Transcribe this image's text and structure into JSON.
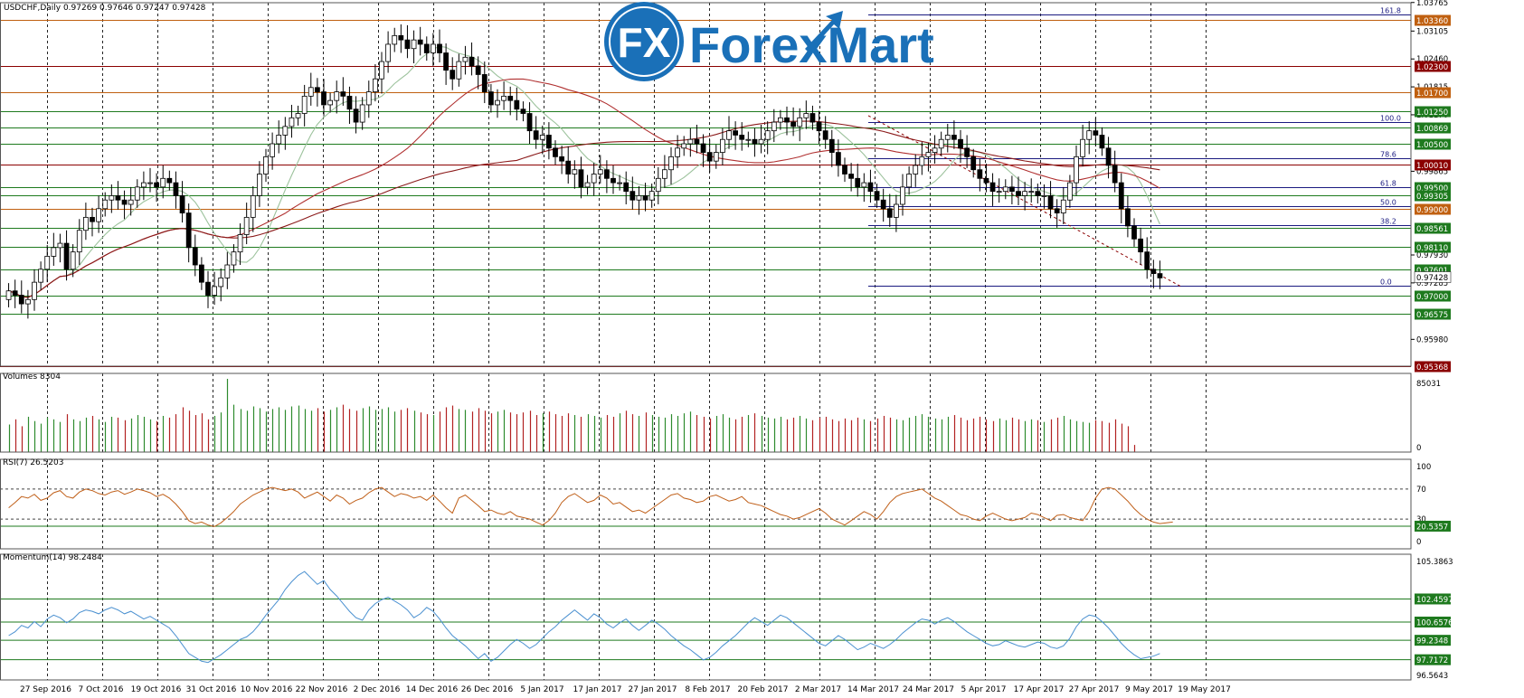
{
  "app": {
    "title": "USDCHF,Daily  0.97269 0.97646 0.97247 0.97428"
  },
  "brand": {
    "name": "ForexMart",
    "mark": "FX"
  },
  "colors": {
    "background": "#ffffff",
    "grid": "#000000",
    "candle_up": "#ffffff",
    "candle_down": "#000000",
    "candle_wick": "#000000",
    "ma_fast": "#9cc29c",
    "ma_mid": "#b03030",
    "ma_slow": "#8b1a1a",
    "level_green": "#1e7a1e",
    "level_red": "#8b0000",
    "level_orange": "#c06010",
    "fib": "#1a1a80",
    "volume_up": "#2e8b2e",
    "volume_down": "#b22222",
    "rsi": "#c0601a",
    "momentum": "#4a90d0",
    "logo_blue": "#1a70b8"
  },
  "chart_data": [
    {
      "type": "candlestick",
      "title": "USDCHF,Daily  0.97269 0.97646 0.97247 0.97428",
      "ylim": [
        0.9536,
        1.0376
      ],
      "x_tick_labels": [
        "27 Sep 2016",
        "7 Oct 2016",
        "19 Oct 2016",
        "31 Oct 2016",
        "10 Nov 2016",
        "22 Nov 2016",
        "2 Dec 2016",
        "14 Dec 2016",
        "26 Dec 2016",
        "5 Jan 2017",
        "17 Jan 2017",
        "27 Jan 2017",
        "8 Feb 2017",
        "20 Feb 2017",
        "2 Mar 2017",
        "14 Mar 2017",
        "24 Mar 2017",
        "5 Apr 2017",
        "17 Apr 2017",
        "27 Apr 2017",
        "9 May 2017",
        "19 May 2017"
      ],
      "y_tick_labels": [
        "1.03765",
        "1.03105",
        "1.02460",
        "1.01815",
        "1.01170",
        "0.99865",
        "0.97930",
        "0.97285",
        "0.95980"
      ],
      "close_series": [
        0.971,
        0.97,
        0.968,
        0.969,
        0.973,
        0.976,
        0.979,
        0.981,
        0.982,
        0.976,
        0.98,
        0.985,
        0.988,
        0.987,
        0.99,
        0.992,
        0.993,
        0.992,
        0.991,
        0.992,
        0.995,
        0.996,
        0.996,
        0.995,
        0.997,
        0.996,
        0.993,
        0.989,
        0.981,
        0.977,
        0.973,
        0.97,
        0.972,
        0.974,
        0.977,
        0.98,
        0.984,
        0.988,
        0.993,
        0.998,
        1.002,
        1.005,
        1.007,
        1.009,
        1.011,
        1.012,
        1.016,
        1.018,
        1.017,
        1.014,
        1.015,
        1.017,
        1.016,
        1.013,
        1.01,
        1.014,
        1.017,
        1.02,
        1.024,
        1.028,
        1.03,
        1.029,
        1.027,
        1.029,
        1.028,
        1.026,
        1.028,
        1.026,
        1.022,
        1.02,
        1.024,
        1.025,
        1.023,
        1.021,
        1.017,
        1.014,
        1.015,
        1.016,
        1.015,
        1.013,
        1.012,
        1.008,
        1.006,
        1.007,
        1.004,
        1.002,
        1.001,
        0.998,
        0.999,
        0.995,
        0.996,
        0.998,
        0.999,
        0.997,
        0.996,
        0.996,
        0.994,
        0.992,
        0.993,
        0.992,
        0.994,
        0.997,
        0.999,
        1.002,
        1.004,
        1.005,
        1.006,
        1.005,
        1.003,
        1.001,
        1.003,
        1.006,
        1.008,
        1.007,
        1.006,
        1.006,
        1.005,
        1.006,
        1.008,
        1.01,
        1.011,
        1.01,
        1.009,
        1.011,
        1.012,
        1.01,
        1.008,
        1.006,
        1.003,
        1.0,
        0.998,
        0.997,
        0.995,
        0.996,
        0.994,
        0.992,
        0.99,
        0.988,
        0.991,
        0.995,
        0.998,
        1.0,
        1.002,
        1.003,
        1.004,
        1.006,
        1.007,
        1.006,
        1.004,
        1.002,
        0.999,
        0.997,
        0.996,
        0.994,
        0.994,
        0.995,
        0.994,
        0.993,
        0.994,
        0.994,
        0.993,
        0.993,
        0.99,
        0.989,
        0.992,
        0.996,
        1.002,
        1.006,
        1.008,
        1.007,
        1.004,
        1.0,
        0.996,
        0.99,
        0.986,
        0.983,
        0.98,
        0.976,
        0.975,
        0.974
      ],
      "levels": [
        {
          "label": "1.03360",
          "value": 1.0336,
          "style": "orange"
        },
        {
          "label": "1.02300",
          "value": 1.023,
          "style": "red"
        },
        {
          "label": "1.01700",
          "value": 1.017,
          "style": "orange"
        },
        {
          "label": "1.01250",
          "value": 1.0125,
          "style": "green"
        },
        {
          "label": "1.00869",
          "value": 1.00869,
          "style": "green"
        },
        {
          "label": "1.00500",
          "value": 1.005,
          "style": "green"
        },
        {
          "label": "1.00010",
          "value": 1.0001,
          "style": "red"
        },
        {
          "label": "0.99500",
          "value": 0.995,
          "style": "green"
        },
        {
          "label": "0.99305",
          "value": 0.99305,
          "style": "green"
        },
        {
          "label": "0.99000",
          "value": 0.99,
          "style": "orange"
        },
        {
          "label": "0.98561",
          "value": 0.98561,
          "style": "green"
        },
        {
          "label": "0.98110",
          "value": 0.9811,
          "style": "green"
        },
        {
          "label": "0.97601",
          "value": 0.97601,
          "style": "green"
        },
        {
          "label": "0.97428",
          "value": 0.97428,
          "style": "white"
        },
        {
          "label": "0.97000",
          "value": 0.97,
          "style": "green"
        },
        {
          "label": "0.96575",
          "value": 0.96575,
          "style": "green"
        },
        {
          "label": "0.95368",
          "value": 0.95368,
          "style": "red"
        }
      ],
      "fib_levels": [
        {
          "label": "161.8",
          "value": 1.0348
        },
        {
          "label": "100.0",
          "value": 1.01
        },
        {
          "label": "78.6",
          "value": 1.0016
        },
        {
          "label": "61.8",
          "value": 0.995
        },
        {
          "label": "50.0",
          "value": 0.9905
        },
        {
          "label": "38.2",
          "value": 0.9862
        },
        {
          "label": "0.0",
          "value": 0.9721
        }
      ]
    },
    {
      "type": "bar",
      "title": "Volumes 8304",
      "ylim": [
        0,
        85031
      ],
      "y_tick_labels": [
        "85031",
        "0"
      ],
      "values": [
        32000,
        38000,
        30000,
        41000,
        36000,
        33000,
        40000,
        38000,
        35000,
        44000,
        38000,
        36000,
        40000,
        42000,
        38000,
        35000,
        41000,
        40000,
        37000,
        39000,
        43000,
        41000,
        38000,
        36000,
        42000,
        40000,
        44000,
        52000,
        48000,
        43000,
        45000,
        38000,
        42000,
        46000,
        85031,
        55000,
        50000,
        48000,
        53000,
        51000,
        47000,
        50000,
        52000,
        49000,
        53000,
        54000,
        50000,
        48000,
        51000,
        47000,
        49000,
        52000,
        55000,
        50000,
        48000,
        51000,
        53000,
        49000,
        50000,
        52000,
        47000,
        49000,
        51000,
        48000,
        46000,
        44000,
        43000,
        47000,
        52000,
        54000,
        50000,
        49000,
        47000,
        51000,
        48000,
        45000,
        47000,
        49000,
        46000,
        44000,
        46000,
        48000,
        43000,
        45000,
        47000,
        44000,
        42000,
        45000,
        43000,
        41000,
        44000,
        42000,
        40000,
        43000,
        41000,
        45000,
        48000,
        44000,
        42000,
        46000,
        43000,
        41000,
        40000,
        44000,
        42000,
        45000,
        47000,
        43000,
        41000,
        39000,
        42000,
        44000,
        40000,
        38000,
        41000,
        43000,
        45000,
        42000,
        40000,
        39000,
        41000,
        38000,
        40000,
        42000,
        39000,
        37000,
        40000,
        41000,
        38000,
        36000,
        39000,
        37000,
        40000,
        38000,
        36000,
        39000,
        42000,
        40000,
        38000,
        37000,
        40000,
        42000,
        44000,
        41000,
        39000,
        38000,
        41000,
        43000,
        40000,
        37000,
        39000,
        41000,
        38000,
        36000,
        39000,
        37000,
        40000,
        38000,
        36000,
        38000,
        37000,
        35000,
        38000,
        40000,
        42000,
        38000,
        36000,
        35000,
        34000,
        37000,
        36000,
        34000,
        38000,
        33000,
        30000,
        8304
      ]
    },
    {
      "type": "line",
      "title": "RSI(7) 26.5203",
      "ylim": [
        0,
        100
      ],
      "y_tick_labels": [
        "100",
        "70",
        "30",
        "0"
      ],
      "marked_value": "20.5357",
      "values": [
        45,
        52,
        60,
        58,
        63,
        55,
        58,
        65,
        68,
        60,
        58,
        66,
        70,
        68,
        64,
        62,
        66,
        68,
        63,
        66,
        70,
        68,
        65,
        60,
        63,
        58,
        50,
        40,
        28,
        24,
        26,
        22,
        20,
        25,
        32,
        40,
        50,
        56,
        62,
        66,
        70,
        72,
        70,
        68,
        70,
        66,
        58,
        62,
        66,
        60,
        54,
        62,
        58,
        50,
        55,
        58,
        65,
        70,
        72,
        66,
        60,
        64,
        62,
        58,
        60,
        55,
        62,
        54,
        45,
        38,
        58,
        62,
        55,
        48,
        40,
        42,
        38,
        36,
        40,
        34,
        32,
        30,
        26,
        22,
        28,
        38,
        52,
        60,
        64,
        58,
        52,
        55,
        62,
        58,
        50,
        52,
        46,
        40,
        42,
        38,
        44,
        50,
        56,
        62,
        64,
        58,
        56,
        52,
        54,
        60,
        62,
        58,
        54,
        56,
        60,
        52,
        50,
        48,
        44,
        40,
        36,
        34,
        30,
        32,
        36,
        40,
        44,
        38,
        30,
        26,
        22,
        28,
        34,
        40,
        36,
        30,
        40,
        52,
        60,
        64,
        66,
        68,
        70,
        64,
        58,
        54,
        48,
        42,
        36,
        34,
        30,
        28,
        34,
        38,
        34,
        30,
        28,
        30,
        32,
        38,
        36,
        32,
        28,
        35,
        36,
        32,
        30,
        28,
        40,
        58,
        70,
        72,
        70,
        62,
        54,
        44,
        36,
        30,
        26,
        24,
        25,
        26
      ]
    },
    {
      "type": "line",
      "title": "Momentum(14) 98.2484",
      "ylim": [
        96.5643,
        105.3863
      ],
      "y_tick_labels": [
        "105.3863",
        "96.5643"
      ],
      "marked_values": [
        "102.4597",
        "100.6576",
        "99.2348",
        "97.7172"
      ],
      "values": [
        99.6,
        99.9,
        100.4,
        100.2,
        100.7,
        100.3,
        100.9,
        101.2,
        101.0,
        100.6,
        100.9,
        101.4,
        101.6,
        101.5,
        101.3,
        101.6,
        101.8,
        101.6,
        101.3,
        101.5,
        101.2,
        100.9,
        101.1,
        100.8,
        100.5,
        100.2,
        99.6,
        98.9,
        98.2,
        97.9,
        97.6,
        97.5,
        97.8,
        98.1,
        98.5,
        98.9,
        99.3,
        99.5,
        99.9,
        100.5,
        101.2,
        101.8,
        102.4,
        103.2,
        103.8,
        104.3,
        104.6,
        104.1,
        103.6,
        103.9,
        103.2,
        102.7,
        102.1,
        101.5,
        101.0,
        100.8,
        101.6,
        102.1,
        102.4,
        102.6,
        102.3,
        102.0,
        101.6,
        101.0,
        101.3,
        101.8,
        101.5,
        100.9,
        100.2,
        99.6,
        99.2,
        98.8,
        98.3,
        97.8,
        98.2,
        97.6,
        97.9,
        98.4,
        98.9,
        99.3,
        99.0,
        98.6,
        98.9,
        99.4,
        99.9,
        100.3,
        100.8,
        101.2,
        101.6,
        101.2,
        100.8,
        101.3,
        101.0,
        100.5,
        100.2,
        100.6,
        100.9,
        100.4,
        100.0,
        100.4,
        100.8,
        100.5,
        100.1,
        99.6,
        99.2,
        98.8,
        98.5,
        98.1,
        97.7,
        97.9,
        98.3,
        98.8,
        99.2,
        99.6,
        100.1,
        100.6,
        101.0,
        100.7,
        100.4,
        100.8,
        101.2,
        101.0,
        100.6,
        100.2,
        99.8,
        99.4,
        99.0,
        98.8,
        99.2,
        99.6,
        99.3,
        98.9,
        98.5,
        98.7,
        99.0,
        98.8,
        98.6,
        98.9,
        99.3,
        99.8,
        100.2,
        100.6,
        100.9,
        100.8,
        100.5,
        100.8,
        101.0,
        100.7,
        100.3,
        99.9,
        99.6,
        99.3,
        99.0,
        98.8,
        98.9,
        99.2,
        99.0,
        98.8,
        98.7,
        98.9,
        99.1,
        99.0,
        98.7,
        98.6,
        98.8,
        99.4,
        100.3,
        100.9,
        101.2,
        101.1,
        100.7,
        100.2,
        99.6,
        99.0,
        98.5,
        98.1,
        97.8,
        97.9,
        98.0,
        98.2
      ]
    }
  ]
}
